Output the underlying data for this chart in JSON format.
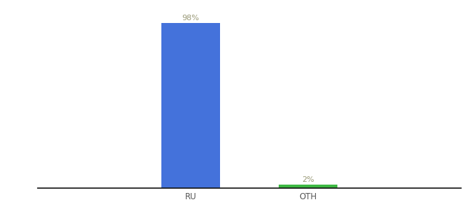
{
  "categories": [
    "RU",
    "OTH"
  ],
  "values": [
    98,
    2
  ],
  "bar_colors": [
    "#4472db",
    "#3db843"
  ],
  "labels": [
    "98%",
    "2%"
  ],
  "label_color": "#999977",
  "ylim": [
    0,
    108
  ],
  "background_color": "#ffffff",
  "label_fontsize": 8,
  "tick_fontsize": 8.5,
  "bar_width": 0.5,
  "xlim": [
    -0.8,
    2.8
  ]
}
